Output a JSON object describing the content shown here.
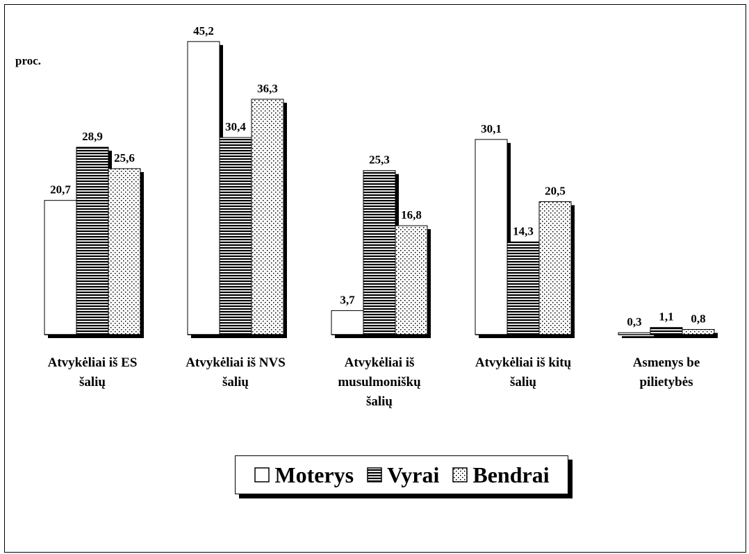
{
  "chart_data": {
    "type": "bar",
    "title": "",
    "ylabel": "proc.",
    "xlabel": "",
    "ylim": [
      0,
      48
    ],
    "grid": false,
    "legend_position": "bottom-center",
    "categories": [
      [
        "Atvykėliai iš ES",
        "šalių"
      ],
      [
        "Atvykėliai iš NVS",
        "šalių"
      ],
      [
        "Atvykėliai iš",
        "musulmoniškų",
        "šalių"
      ],
      [
        "Atvykėliai iš kitų",
        "šalių"
      ],
      [
        "Asmenys be",
        "pilietybės"
      ]
    ],
    "series": [
      {
        "name": "Moterys",
        "pattern": "plain",
        "values": [
          20.7,
          45.2,
          3.7,
          30.1,
          0.3
        ],
        "labels": [
          "20,7",
          "45,2",
          "3,7",
          "30,1",
          "0,3"
        ]
      },
      {
        "name": "Vyrai",
        "pattern": "horizontal-stripes",
        "values": [
          28.9,
          30.4,
          25.3,
          14.3,
          1.1
        ],
        "labels": [
          "28,9",
          "30,4",
          "25,3",
          "14,3",
          "1,1"
        ]
      },
      {
        "name": "Bendrai",
        "pattern": "dots",
        "values": [
          25.6,
          36.3,
          16.8,
          20.5,
          0.8
        ],
        "labels": [
          "25,6",
          "36,3",
          "16,8",
          "20,5",
          "0,8"
        ]
      }
    ],
    "colors": {
      "bar_fill": "#ffffff",
      "stroke": "#000000",
      "shadow": "#000000"
    }
  }
}
